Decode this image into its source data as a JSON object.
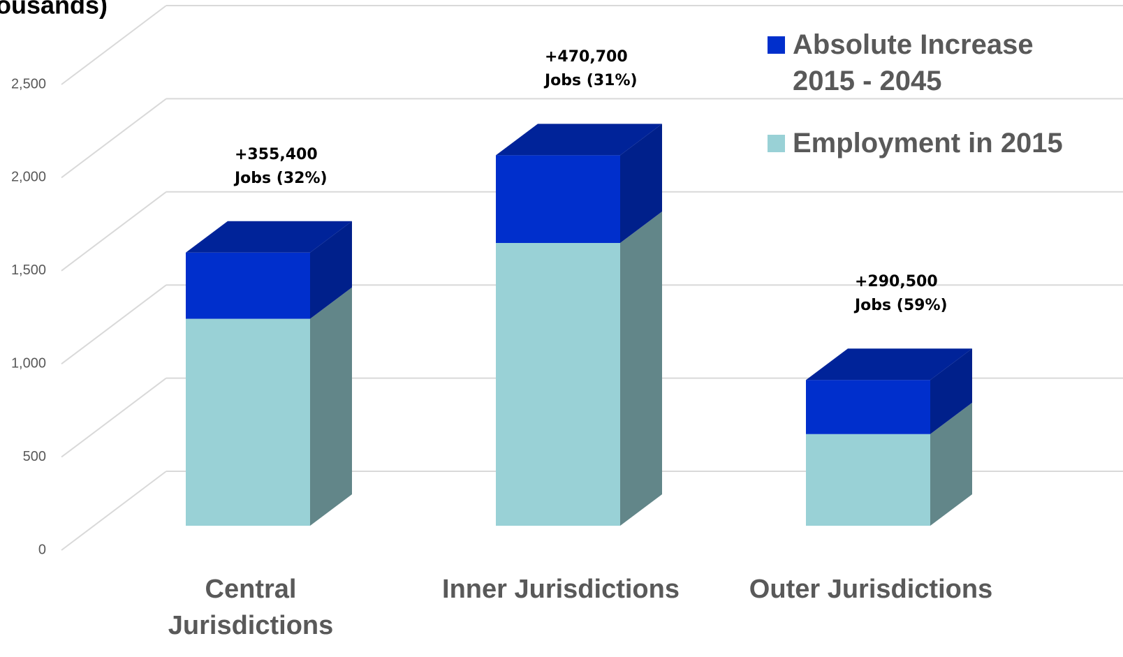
{
  "chart_data": {
    "type": "bar3d_stacked",
    "title": "ousands)",
    "categories": [
      "Central Jurisdictions",
      "Inner Jurisdictions",
      "Outer Jurisdictions"
    ],
    "series": [
      {
        "name": "Employment in 2015",
        "color": "#99d1d6",
        "values": [
          1111,
          1518,
          492
        ]
      },
      {
        "name": "Absolute Increase 2015 - 2045",
        "color": "#002fcc",
        "values": [
          355.4,
          470.7,
          290.5
        ],
        "value_labels": [
          "+355,400 Jobs (32%)",
          "+470,700 Jobs (31%)",
          "+290,500 Jobs (59%)"
        ]
      }
    ],
    "ylim": [
      0,
      2500
    ],
    "yticks": [
      0,
      500,
      {
        "value": 1000,
        "label": "1,000"
      },
      {
        "value": 1500,
        "label": "1,500"
      },
      {
        "value": 2000,
        "label": "2,000"
      },
      {
        "value": 2500,
        "label": "2,500"
      }
    ],
    "grid": true,
    "legend": "upper right"
  }
}
